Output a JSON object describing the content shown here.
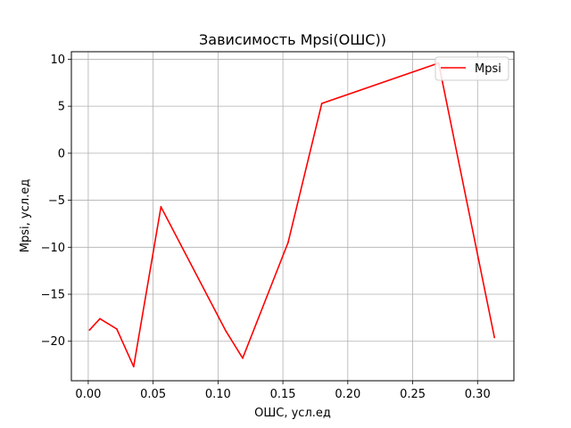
{
  "chart_data": {
    "type": "line",
    "title": "Зависимость Mpsi(ОШС))",
    "xlabel": "ОШС, усл.ед",
    "ylabel": "Mpsi, усл.ед",
    "xlim": [
      -0.013,
      0.328
    ],
    "ylim": [
      -24.2,
      10.8
    ],
    "xticks": [
      0.0,
      0.05,
      0.1,
      0.15,
      0.2,
      0.25,
      0.3
    ],
    "xtick_labels": [
      "0.00",
      "0.05",
      "0.10",
      "0.15",
      "0.20",
      "0.25",
      "0.30"
    ],
    "yticks": [
      -20,
      -15,
      -10,
      -5,
      0,
      5,
      10
    ],
    "ytick_labels": [
      "−20",
      "−15",
      "−10",
      "−5",
      "0",
      "5",
      "10"
    ],
    "grid": true,
    "legend_position": "top-right",
    "series": [
      {
        "name": "Mpsi",
        "color": "#ff0000",
        "x": [
          0.001,
          0.009,
          0.022,
          0.035,
          0.056,
          0.106,
          0.119,
          0.154,
          0.18,
          0.27,
          0.313
        ],
        "y": [
          -18.8,
          -17.6,
          -18.7,
          -22.7,
          -5.7,
          -18.9,
          -21.8,
          -9.5,
          5.3,
          9.6,
          -19.6
        ]
      }
    ]
  }
}
